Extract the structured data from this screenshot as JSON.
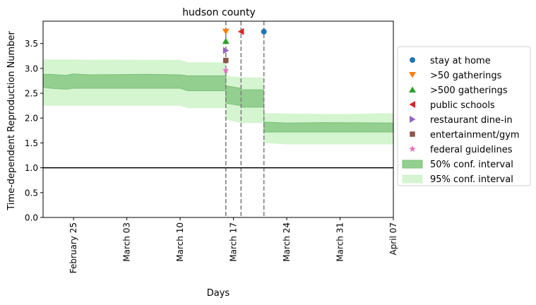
{
  "chart_data": {
    "type": "line",
    "title": "hudson county",
    "xlabel": "Days",
    "ylabel": "Time-dependent Reproduction Number",
    "xlim": [
      "2020-02-21",
      "2020-04-07"
    ],
    "ylim": [
      0,
      3.95
    ],
    "x_ticks": [
      {
        "date": "2020-02-25",
        "label": "February 25"
      },
      {
        "date": "2020-03-03",
        "label": "March 03"
      },
      {
        "date": "2020-03-10",
        "label": "March 10"
      },
      {
        "date": "2020-03-17",
        "label": "March 17"
      },
      {
        "date": "2020-03-24",
        "label": "March 24"
      },
      {
        "date": "2020-03-31",
        "label": "March 31"
      },
      {
        "date": "2020-04-07",
        "label": "April 07"
      }
    ],
    "y_ticks": [
      0.0,
      0.5,
      1.0,
      1.5,
      2.0,
      2.5,
      3.0,
      3.5
    ],
    "y_tick_labels": [
      "0.0",
      "0.5",
      "1.0",
      "1.5",
      "2.0",
      "2.5",
      "3.0",
      "3.5"
    ],
    "reference_line": {
      "y": 1.0,
      "color": "#000000"
    },
    "intervention_lines": [
      "2020-03-16",
      "2020-03-18",
      "2020-03-21"
    ],
    "interval_50": {
      "label": "50% conf. interval",
      "color": "#93cf8e",
      "edge_color": "#7cc07a",
      "points": [
        {
          "x": "2020-02-21",
          "lo": 2.62,
          "hi": 2.88
        },
        {
          "x": "2020-02-22",
          "lo": 2.6,
          "hi": 2.88
        },
        {
          "x": "2020-02-24",
          "lo": 2.58,
          "hi": 2.86
        },
        {
          "x": "2020-02-25",
          "lo": 2.6,
          "hi": 2.89
        },
        {
          "x": "2020-02-27",
          "lo": 2.6,
          "hi": 2.87
        },
        {
          "x": "2020-03-06",
          "lo": 2.6,
          "hi": 2.88
        },
        {
          "x": "2020-03-10",
          "lo": 2.6,
          "hi": 2.87
        },
        {
          "x": "2020-03-11",
          "lo": 2.55,
          "hi": 2.85
        },
        {
          "x": "2020-03-16",
          "lo": 2.55,
          "hi": 2.85
        },
        {
          "x": "2020-03-16",
          "lo": 2.3,
          "hi": 2.65
        },
        {
          "x": "2020-03-18",
          "lo": 2.25,
          "hi": 2.6
        },
        {
          "x": "2020-03-18",
          "lo": 2.22,
          "hi": 2.57
        },
        {
          "x": "2020-03-21",
          "lo": 2.22,
          "hi": 2.57
        },
        {
          "x": "2020-03-21",
          "lo": 1.72,
          "hi": 1.92
        },
        {
          "x": "2020-03-24",
          "lo": 1.72,
          "hi": 1.9
        },
        {
          "x": "2020-03-29",
          "lo": 1.72,
          "hi": 1.91
        },
        {
          "x": "2020-04-07",
          "lo": 1.72,
          "hi": 1.9
        }
      ]
    },
    "interval_95": {
      "label": "95% conf. interval",
      "color": "#d4f5cf",
      "points": [
        {
          "x": "2020-02-21",
          "lo": 2.25,
          "hi": 3.18
        },
        {
          "x": "2020-02-24",
          "lo": 2.25,
          "hi": 3.18
        },
        {
          "x": "2020-03-10",
          "lo": 2.25,
          "hi": 3.17
        },
        {
          "x": "2020-03-11",
          "lo": 2.2,
          "hi": 3.12
        },
        {
          "x": "2020-03-16",
          "lo": 2.2,
          "hi": 3.12
        },
        {
          "x": "2020-03-16",
          "lo": 1.97,
          "hi": 2.85
        },
        {
          "x": "2020-03-18",
          "lo": 1.9,
          "hi": 2.82
        },
        {
          "x": "2020-03-21",
          "lo": 1.9,
          "hi": 2.82
        },
        {
          "x": "2020-03-21",
          "lo": 1.5,
          "hi": 2.1
        },
        {
          "x": "2020-03-24",
          "lo": 1.47,
          "hi": 2.09
        },
        {
          "x": "2020-03-31",
          "lo": 1.47,
          "hi": 2.08
        },
        {
          "x": "2020-04-07",
          "lo": 1.47,
          "hi": 2.1
        }
      ]
    },
    "markers": [
      {
        "label": "stay at home",
        "x": "2020-03-21",
        "y": 3.74,
        "color": "#1f77b4",
        "marker": "circle"
      },
      {
        "label": ">50 gatherings",
        "x": "2020-03-16",
        "y": 3.74,
        "color": "#ff7f0e",
        "marker": "triangle-down"
      },
      {
        "label": ">500 gatherings",
        "x": "2020-03-16",
        "y": 3.55,
        "color": "#2ca02c",
        "marker": "triangle-up"
      },
      {
        "label": "public schools",
        "x": "2020-03-18",
        "y": 3.74,
        "color": "#d62728",
        "marker": "triangle-left"
      },
      {
        "label": "restaurant dine-in",
        "x": "2020-03-16",
        "y": 3.36,
        "color": "#9467bd",
        "marker": "triangle-right"
      },
      {
        "label": "entertainment/gym",
        "x": "2020-03-16",
        "y": 3.16,
        "color": "#8c564b",
        "marker": "square"
      },
      {
        "label": "federal guidelines",
        "x": "2020-03-16",
        "y": 2.96,
        "color": "#e377c2",
        "marker": "star"
      }
    ],
    "legend": {
      "position": "center-right",
      "entries": [
        {
          "label": "stay at home",
          "color": "#1f77b4",
          "marker": "circle"
        },
        {
          "label": ">50 gatherings",
          "color": "#ff7f0e",
          "marker": "triangle-down"
        },
        {
          "label": ">500 gatherings",
          "color": "#2ca02c",
          "marker": "triangle-up"
        },
        {
          "label": "public schools",
          "color": "#d62728",
          "marker": "triangle-left"
        },
        {
          "label": "restaurant dine-in",
          "color": "#9467bd",
          "marker": "triangle-right"
        },
        {
          "label": "entertainment/gym",
          "color": "#8c564b",
          "marker": "square"
        },
        {
          "label": "federal guidelines",
          "color": "#e377c2",
          "marker": "star"
        },
        {
          "label": "50% conf. interval",
          "color": "#93cf8e",
          "marker": "patch"
        },
        {
          "label": "95% conf. interval",
          "color": "#d4f5cf",
          "marker": "patch"
        }
      ]
    },
    "grid": false
  }
}
